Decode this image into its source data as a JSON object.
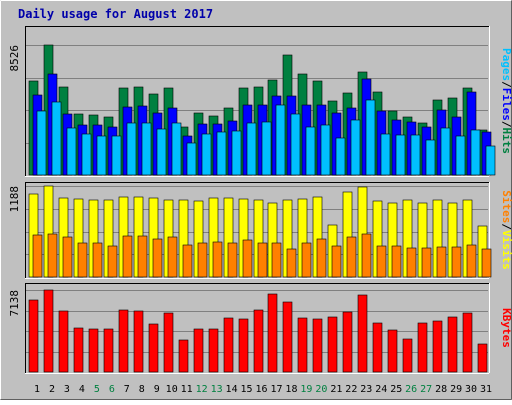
{
  "chart_data": {
    "title": "Daily usage for August 2017",
    "days": [
      "1",
      "2",
      "3",
      "4",
      "5",
      "6",
      "7",
      "8",
      "9",
      "10",
      "11",
      "12",
      "13",
      "14",
      "15",
      "16",
      "17",
      "18",
      "19",
      "20",
      "21",
      "22",
      "23",
      "24",
      "25",
      "26",
      "27",
      "28",
      "29",
      "30",
      "31"
    ],
    "weekend_days": [
      "5",
      "6",
      "12",
      "13",
      "19",
      "20",
      "26",
      "27"
    ],
    "panels": [
      {
        "name": "hits-files-pages",
        "type": "bar",
        "y_max_label": "8526",
        "y_max": 8526,
        "side_label": [
          "Pages",
          "Files",
          "Hits"
        ],
        "series": [
          {
            "name": "Hits",
            "color": "#008040",
            "values": [
              6140,
              8526,
              5740,
              3970,
              3920,
              3800,
              5680,
              5740,
              5280,
              5680,
              3160,
              4070,
              3850,
              4410,
              5710,
              5740,
              6250,
              7890,
              6650,
              6160,
              4880,
              5390,
              6760,
              5460,
              4200,
              3800,
              3440,
              4950,
              5060,
              5680,
              2920
            ]
          },
          {
            "name": "Files",
            "color": "#0000ff",
            "values": [
              5230,
              6600,
              4020,
              3280,
              3300,
              3170,
              4450,
              4510,
              4080,
              4390,
              2580,
              3370,
              3370,
              3570,
              4590,
              4620,
              5170,
              5160,
              4610,
              4590,
              4050,
              4420,
              6310,
              4220,
              3610,
              3460,
              3140,
              4270,
              3820,
              5460,
              2800
            ]
          },
          {
            "name": "Pages",
            "color": "#00c0ff",
            "values": [
              4190,
              4800,
              3060,
              2670,
              2590,
              2560,
              3380,
              3410,
              3020,
              3400,
              2120,
              2690,
              2820,
              2880,
              3430,
              3450,
              4580,
              3970,
              3120,
              3300,
              2430,
              3610,
              4920,
              2690,
              2630,
              2620,
              2280,
              3090,
              2560,
              2980,
              1870
            ]
          }
        ]
      },
      {
        "name": "visits-sites",
        "type": "bar",
        "y_max_label": "1188",
        "y_max": 1188,
        "side_label": [
          "Sites",
          "Visits"
        ],
        "series": [
          {
            "name": "Visits",
            "color": "#ffff00",
            "values": [
              1080,
              1188,
              1030,
              1020,
              1000,
              1010,
              1040,
              1050,
              1030,
              1000,
              1000,
              990,
              1030,
              1030,
              1020,
              1000,
              960,
              1000,
              1020,
              1040,
              680,
              1110,
              1180,
              990,
              970,
              1000,
              970,
              1000,
              970,
              1000,
              670
            ]
          },
          {
            "name": "Sites",
            "color": "#ff8000",
            "values": [
              550,
              560,
              520,
              450,
              440,
              410,
              530,
              540,
              500,
              520,
              420,
              440,
              460,
              450,
              480,
              450,
              450,
              370,
              440,
              490,
              410,
              520,
              560,
              410,
              410,
              380,
              380,
              390,
              390,
              420,
              370
            ]
          }
        ]
      },
      {
        "name": "kbytes",
        "type": "bar",
        "y_max_label": "7138",
        "y_max": 7138,
        "side_label": [
          "KBytes"
        ],
        "series": [
          {
            "name": "KBytes",
            "color": "#ff0000",
            "values": [
              6260,
              7138,
              5270,
              3830,
              3730,
              3700,
              5360,
              5330,
              4180,
              5140,
              2820,
              3730,
              3730,
              4670,
              4620,
              5400,
              6790,
              6110,
              4700,
              4640,
              4820,
              5250,
              6660,
              4260,
              3630,
              2850,
              4300,
              4430,
              4820,
              5150,
              2450
            ]
          }
        ]
      }
    ]
  }
}
